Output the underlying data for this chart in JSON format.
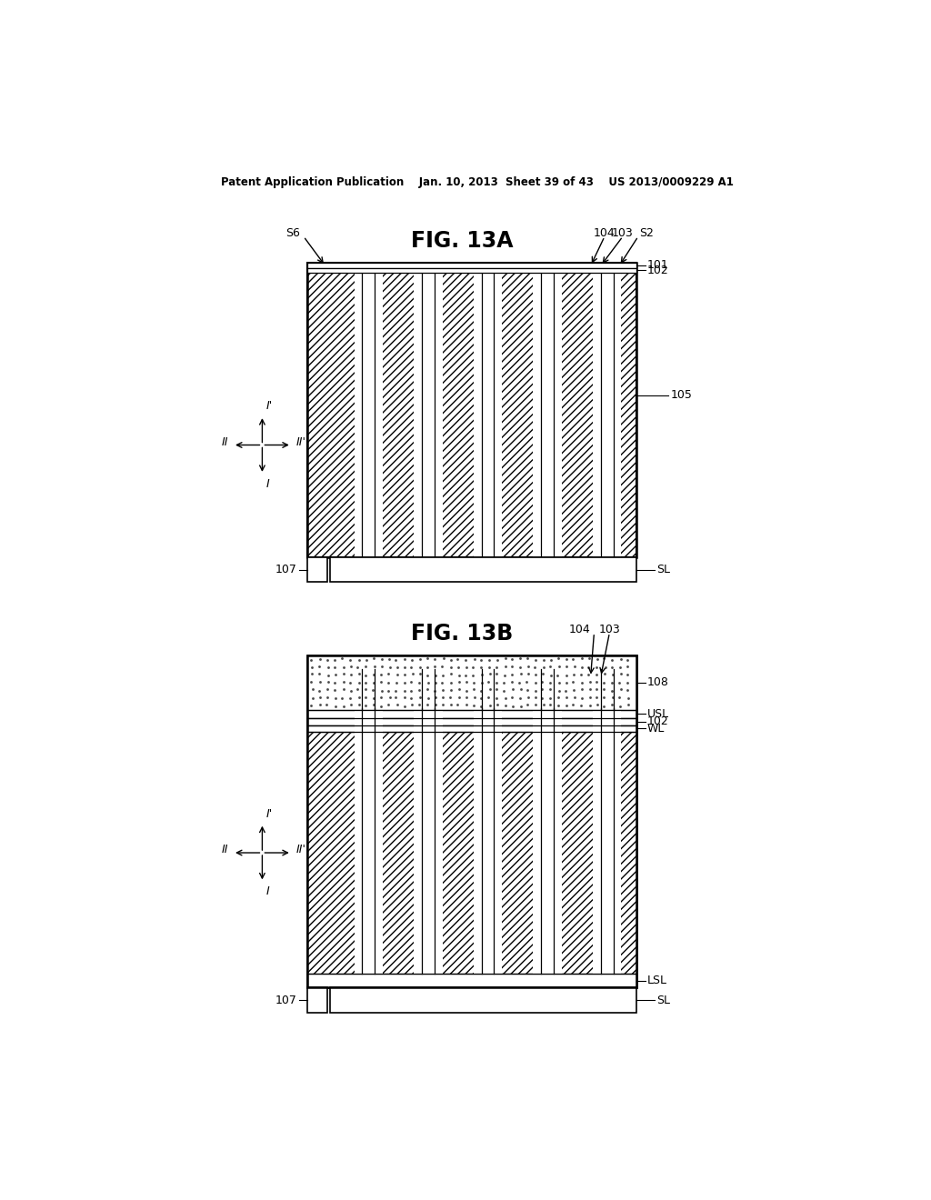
{
  "bg_color": "#ffffff",
  "header_text": "Patent Application Publication    Jan. 10, 2013  Sheet 39 of 43    US 2013/0009229 A1",
  "fig13a_title": "FIG. 13A",
  "fig13b_title": "FIG. 13B",
  "line_color": "#000000"
}
